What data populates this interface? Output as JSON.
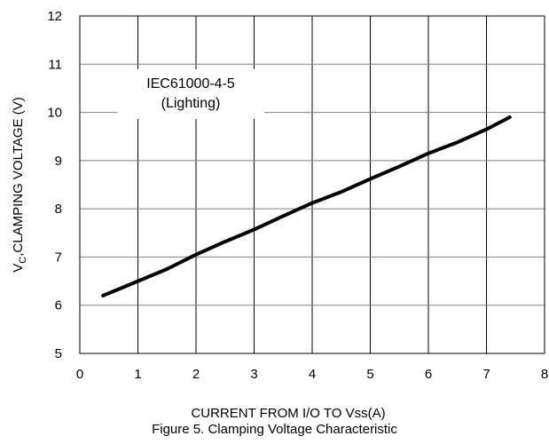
{
  "chart_data": {
    "type": "line",
    "xlabel": "CURRENT  FROM  I/O TO  Vss(A)",
    "ylabel_main": "V",
    "ylabel_sub": "C",
    "ylabel_rest": ",CLAMPING VOLTAGE  (V)",
    "xlim": [
      0,
      8
    ],
    "ylim": [
      5,
      12
    ],
    "xticks": [
      0,
      1,
      2,
      3,
      4,
      5,
      6,
      7,
      8
    ],
    "yticks": [
      5,
      6,
      7,
      8,
      9,
      10,
      11,
      12
    ],
    "grid": "vertical and horizontal",
    "annotation": [
      "IEC61000-4-5",
      "(Lighting)"
    ],
    "series": [
      {
        "x": [
          0.4,
          1.0,
          1.5,
          2.0,
          2.5,
          3.0,
          3.5,
          4.0,
          4.5,
          5.0,
          5.5,
          6.0,
          6.5,
          7.0,
          7.4
        ],
        "values": [
          6.2,
          6.5,
          6.75,
          7.05,
          7.32,
          7.57,
          7.85,
          8.12,
          8.35,
          8.62,
          8.88,
          9.15,
          9.38,
          9.65,
          9.9
        ]
      }
    ],
    "caption": "Figure 5. Clamping Voltage Characteristic"
  }
}
